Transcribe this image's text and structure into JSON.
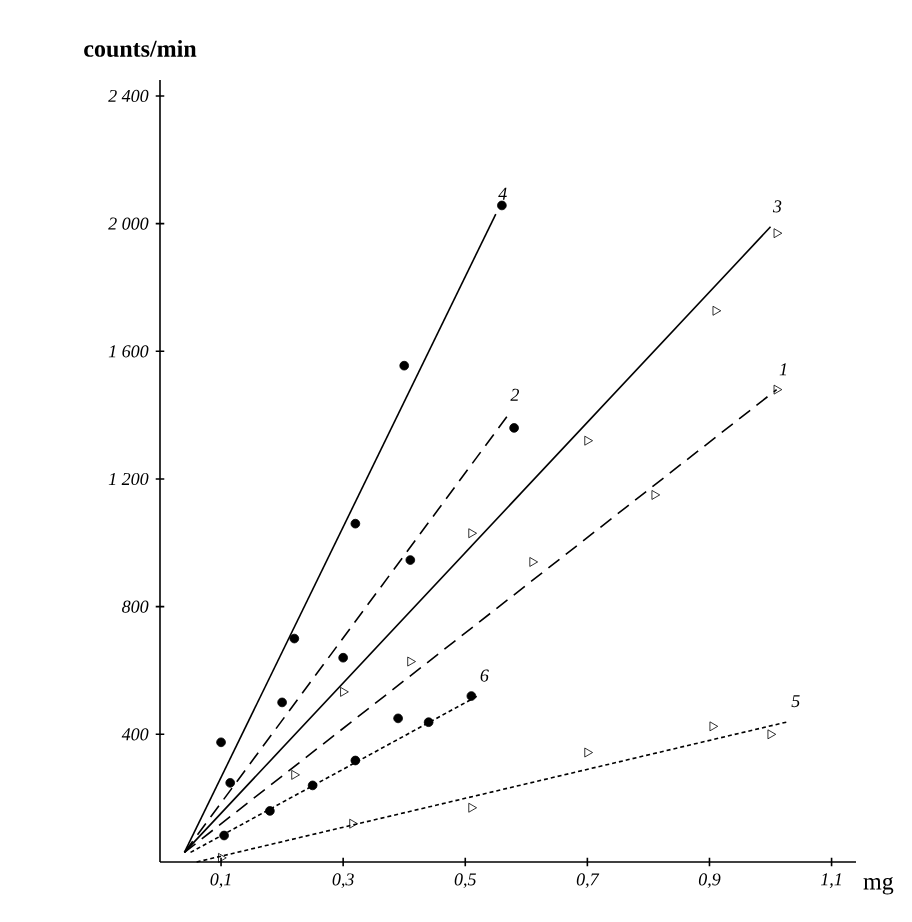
{
  "chart_data": {
    "type": "scatter",
    "ylabel": "counts/min",
    "xlabel": "mg",
    "xlim": [
      0,
      1.14
    ],
    "ylim": [
      0,
      2450
    ],
    "xticks": [
      {
        "value": 0.1,
        "label": "0,1"
      },
      {
        "value": 0.3,
        "label": "0,3"
      },
      {
        "value": 0.5,
        "label": "0,5"
      },
      {
        "value": 0.7,
        "label": "0,7"
      },
      {
        "value": 0.9,
        "label": "0,9"
      },
      {
        "value": 1.1,
        "label": "1,1"
      }
    ],
    "yticks": [
      400,
      800,
      {
        "value": 1200,
        "label": "1 200"
      },
      {
        "value": 1600,
        "label": "1 600"
      },
      {
        "value": 2000,
        "label": "2 000"
      },
      {
        "value": 2400,
        "label": "2 400"
      }
    ],
    "grid": false,
    "series": [
      {
        "marker": "circle",
        "color": "#000000",
        "x": [
          0.1,
          0.22,
          0.32,
          0.4,
          0.56
        ],
        "values": [
          375,
          700,
          1060,
          1555,
          2057
        ]
      },
      {
        "type": "line",
        "name": "4",
        "marker": "none",
        "line_style": "solid",
        "color": "#000000",
        "x": [
          0.04,
          0.55
        ],
        "values": [
          30,
          2030
        ]
      },
      {
        "marker": "circle",
        "color": "#000000",
        "x": [
          0.115,
          0.2,
          0.3,
          0.41,
          0.58
        ],
        "values": [
          248,
          500,
          640,
          946,
          1360
        ]
      },
      {
        "type": "line",
        "name": "2",
        "marker": "none",
        "line_style": "dashed",
        "color": "#000000",
        "x": [
          0.04,
          0.57
        ],
        "values": [
          30,
          1400
        ]
      },
      {
        "marker": "triangle",
        "color": "#000000",
        "x": [
          0.3,
          0.51,
          0.7,
          0.91,
          1.01
        ],
        "values": [
          533,
          1030,
          1320,
          1727,
          1970
        ]
      },
      {
        "type": "line",
        "name": "3",
        "marker": "none",
        "line_style": "solid",
        "color": "#000000",
        "x": [
          0.04,
          1.0
        ],
        "values": [
          30,
          1990
        ]
      },
      {
        "marker": "triangle",
        "color": "#000000",
        "x": [
          0.22,
          0.41,
          0.61,
          0.81,
          1.01
        ],
        "values": [
          273,
          628,
          940,
          1150,
          1480
        ]
      },
      {
        "type": "line",
        "name": "1",
        "marker": "none",
        "line_style": "dashed",
        "color": "#000000",
        "x": [
          0.04,
          1.01
        ],
        "values": [
          30,
          1480
        ]
      },
      {
        "marker": "circle",
        "color": "#000000",
        "x": [
          0.105,
          0.18,
          0.25,
          0.32,
          0.39,
          0.44,
          0.51
        ],
        "values": [
          83,
          160,
          240,
          318,
          450,
          438,
          520
        ]
      },
      {
        "type": "line",
        "name": "6",
        "marker": "none",
        "line_style": "dotted",
        "color": "#000000",
        "x": [
          0.05,
          0.52
        ],
        "values": [
          30,
          520
        ]
      },
      {
        "marker": "triangle",
        "color": "#000000",
        "x": [
          0.1,
          0.315,
          0.51,
          0.7,
          0.905,
          1.0
        ],
        "values": [
          13,
          120,
          170,
          343,
          425,
          400
        ]
      },
      {
        "type": "line",
        "name": "5",
        "marker": "none",
        "line_style": "dotted",
        "color": "#000000",
        "x": [
          0.06,
          1.03
        ],
        "values": [
          0,
          440
        ]
      }
    ]
  }
}
